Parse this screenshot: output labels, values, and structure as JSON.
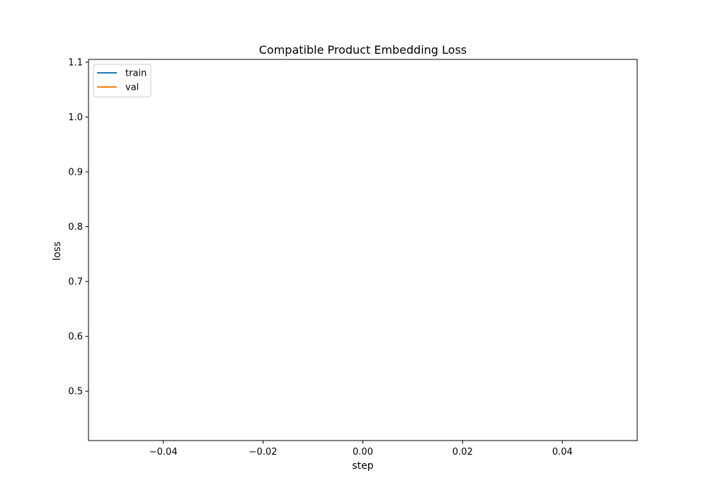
{
  "chart_data": {
    "type": "line",
    "title": "Compatible Product Embedding Loss",
    "xlabel": "step",
    "ylabel": "loss",
    "xlim": [
      -0.055,
      0.055
    ],
    "ylim": [
      0.41,
      1.105
    ],
    "x_ticks": [
      -0.04,
      -0.02,
      0.0,
      0.02,
      0.04
    ],
    "x_tick_labels": [
      "−0.04",
      "−0.02",
      "0.00",
      "0.02",
      "0.04"
    ],
    "y_ticks": [
      0.5,
      0.6,
      0.7,
      0.8,
      0.9,
      1.0,
      1.1
    ],
    "y_tick_labels": [
      "0.5",
      "0.6",
      "0.7",
      "0.8",
      "0.9",
      "1.0",
      "1.1"
    ],
    "grid": false,
    "legend_position": "top-left",
    "series": [
      {
        "name": "train",
        "color": "#1f77b4",
        "x": [],
        "y": []
      },
      {
        "name": "val",
        "color": "#ff7f0e",
        "x": [],
        "y": []
      }
    ]
  }
}
